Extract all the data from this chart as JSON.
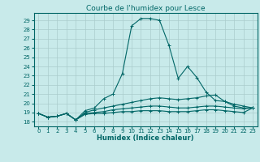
{
  "title": "Courbe de l'humidex pour Lesce",
  "xlabel": "Humidex (Indice chaleur)",
  "background_color": "#c8eaea",
  "grid_color": "#aacccc",
  "line_color": "#006666",
  "xlim": [
    -0.5,
    23.5
  ],
  "ylim": [
    17.5,
    29.8
  ],
  "yticks": [
    18,
    19,
    20,
    21,
    22,
    23,
    24,
    25,
    26,
    27,
    28,
    29
  ],
  "xticks": [
    0,
    1,
    2,
    3,
    4,
    5,
    6,
    7,
    8,
    9,
    10,
    11,
    12,
    13,
    14,
    15,
    16,
    17,
    18,
    19,
    20,
    21,
    22,
    23
  ],
  "series": [
    [
      18.9,
      18.5,
      18.6,
      18.9,
      18.2,
      19.2,
      19.5,
      20.5,
      21.0,
      23.2,
      28.4,
      29.2,
      29.2,
      29.0,
      26.3,
      22.7,
      24.0,
      22.8,
      21.2,
      20.3,
      20.2,
      19.7,
      19.5,
      19.5
    ],
    [
      18.9,
      18.5,
      18.6,
      18.9,
      18.2,
      19.0,
      19.3,
      19.5,
      19.7,
      19.9,
      20.1,
      20.3,
      20.5,
      20.6,
      20.5,
      20.4,
      20.5,
      20.6,
      20.8,
      20.9,
      20.2,
      19.9,
      19.7,
      19.5
    ],
    [
      18.9,
      18.5,
      18.6,
      18.9,
      18.2,
      18.9,
      19.0,
      19.1,
      19.3,
      19.4,
      19.5,
      19.6,
      19.7,
      19.7,
      19.6,
      19.5,
      19.5,
      19.6,
      19.7,
      19.7,
      19.6,
      19.5,
      19.4,
      19.5
    ],
    [
      18.9,
      18.5,
      18.6,
      18.9,
      18.2,
      18.8,
      18.9,
      18.9,
      19.0,
      19.1,
      19.1,
      19.2,
      19.2,
      19.2,
      19.1,
      19.1,
      19.1,
      19.2,
      19.3,
      19.3,
      19.2,
      19.1,
      19.0,
      19.5
    ]
  ],
  "marker": "+",
  "markersize": 3,
  "linewidth": 0.8,
  "title_fontsize": 6.5,
  "label_fontsize": 6,
  "tick_fontsize": 5
}
